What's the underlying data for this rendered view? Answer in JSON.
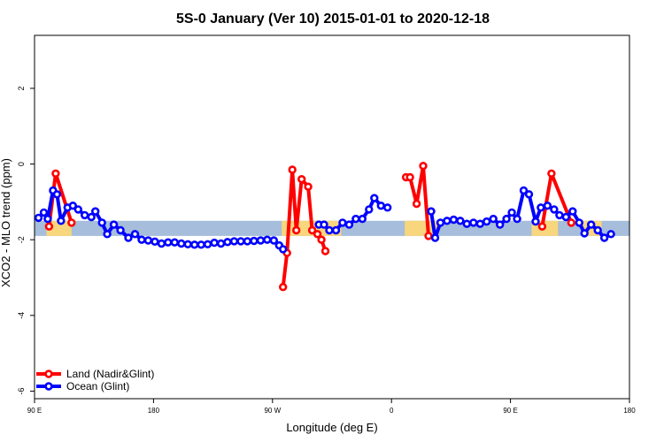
{
  "chart_data": {
    "type": "line",
    "title": "5S-0 January (Ver 10)   2015-01-01 to 2020-12-18",
    "xlabel": "Longitude (deg E)",
    "ylabel": "XCO2 - MLO trend (ppm)",
    "x_domain": [
      90,
      540
    ],
    "ylim": [
      -6.2,
      3.4
    ],
    "x_ticks": [
      {
        "x": 90,
        "label": "90 E"
      },
      {
        "x": 180,
        "label": "180"
      },
      {
        "x": 270,
        "label": "90 W"
      },
      {
        "x": 360,
        "label": "0"
      },
      {
        "x": 450,
        "label": "90 E"
      },
      {
        "x": 540,
        "label": "180"
      }
    ],
    "y_ticks": [
      {
        "y": 2,
        "label": "2"
      },
      {
        "y": 0,
        "label": "0"
      },
      {
        "y": -2,
        "label": "-2"
      },
      {
        "y": -4,
        "label": "-4"
      },
      {
        "y": -6,
        "label": "-6"
      }
    ],
    "grid": false,
    "background_band": {
      "y_range": [
        -1.9,
        -1.5
      ],
      "ocean_color": "#a6bddb",
      "land_color": "#f7d67e",
      "land_ranges": [
        [
          99,
          118
        ],
        [
          277,
          322
        ],
        [
          370,
          395
        ],
        [
          466,
          486
        ],
        [
          504,
          519
        ]
      ]
    },
    "legend_position": "bottom-left",
    "series": [
      {
        "name": "Land (Nadir&Glint)",
        "color": "#ff0000",
        "segments": [
          [
            [
              101,
              -1.65
            ],
            [
              106,
              -0.25
            ],
            [
              118,
              -1.55
            ]
          ],
          [
            [
              278,
              -3.25
            ],
            [
              281,
              -2.35
            ],
            [
              285,
              -0.15
            ],
            [
              288,
              -1.75
            ],
            [
              292,
              -0.4
            ],
            [
              297,
              -0.6
            ],
            [
              300,
              -1.75
            ],
            [
              304,
              -1.85
            ],
            [
              307,
              -2.0
            ],
            [
              310,
              -2.3
            ]
          ],
          [
            [
              371,
              -0.35
            ],
            [
              374,
              -0.35
            ],
            [
              379,
              -1.05
            ],
            [
              384,
              -0.05
            ],
            [
              388,
              -1.9
            ]
          ],
          [
            [
              474,
              -1.65
            ],
            [
              481,
              -0.25
            ],
            [
              496,
              -1.55
            ]
          ]
        ]
      },
      {
        "name": "Ocean (Glint)",
        "color": "#0000ff",
        "segments": [
          [
            [
              93,
              -1.42
            ],
            [
              97,
              -1.28
            ],
            [
              100,
              -1.45
            ],
            [
              104,
              -0.7
            ],
            [
              107,
              -0.8
            ],
            [
              110,
              -1.5
            ],
            [
              115,
              -1.15
            ],
            [
              119,
              -1.1
            ],
            [
              123,
              -1.2
            ],
            [
              128,
              -1.35
            ],
            [
              133,
              -1.4
            ],
            [
              136,
              -1.25
            ],
            [
              141,
              -1.55
            ],
            [
              145,
              -1.85
            ],
            [
              150,
              -1.6
            ],
            [
              155,
              -1.75
            ],
            [
              161,
              -1.95
            ],
            [
              166,
              -1.85
            ],
            [
              171,
              -2.0
            ],
            [
              176,
              -2.02
            ],
            [
              181,
              -2.05
            ],
            [
              186,
              -2.1
            ],
            [
              191,
              -2.07
            ],
            [
              196,
              -2.07
            ],
            [
              201,
              -2.1
            ],
            [
              206,
              -2.12
            ],
            [
              211,
              -2.13
            ],
            [
              216,
              -2.13
            ],
            [
              221,
              -2.12
            ],
            [
              226,
              -2.08
            ],
            [
              231,
              -2.1
            ],
            [
              236,
              -2.06
            ],
            [
              241,
              -2.04
            ],
            [
              246,
              -2.04
            ],
            [
              251,
              -2.04
            ],
            [
              256,
              -2.03
            ],
            [
              261,
              -2.02
            ],
            [
              266,
              -2.0
            ],
            [
              271,
              -2.02
            ],
            [
              275,
              -2.15
            ],
            [
              278,
              -2.25
            ]
          ],
          [
            [
              305,
              -1.6
            ],
            [
              309,
              -1.6
            ],
            [
              313,
              -1.75
            ],
            [
              318,
              -1.75
            ],
            [
              323,
              -1.55
            ],
            [
              328,
              -1.6
            ],
            [
              333,
              -1.45
            ],
            [
              338,
              -1.45
            ],
            [
              343,
              -1.2
            ],
            [
              347,
              -0.9
            ],
            [
              352,
              -1.1
            ],
            [
              357,
              -1.15
            ]
          ],
          [
            [
              390,
              -1.25
            ],
            [
              393,
              -1.95
            ],
            [
              397,
              -1.55
            ],
            [
              402,
              -1.5
            ],
            [
              407,
              -1.47
            ],
            [
              412,
              -1.5
            ],
            [
              417,
              -1.58
            ],
            [
              422,
              -1.55
            ],
            [
              427,
              -1.58
            ],
            [
              432,
              -1.52
            ],
            [
              437,
              -1.45
            ],
            [
              442,
              -1.6
            ],
            [
              447,
              -1.45
            ],
            [
              451,
              -1.28
            ],
            [
              455,
              -1.45
            ],
            [
              460,
              -0.7
            ],
            [
              464,
              -0.8
            ],
            [
              469,
              -1.52
            ],
            [
              473,
              -1.15
            ],
            [
              478,
              -1.1
            ],
            [
              483,
              -1.2
            ],
            [
              487,
              -1.35
            ],
            [
              492,
              -1.4
            ],
            [
              497,
              -1.25
            ],
            [
              502,
              -1.55
            ],
            [
              506,
              -1.83
            ],
            [
              511,
              -1.6
            ],
            [
              516,
              -1.75
            ],
            [
              521,
              -1.95
            ],
            [
              526,
              -1.85
            ]
          ]
        ]
      }
    ]
  }
}
